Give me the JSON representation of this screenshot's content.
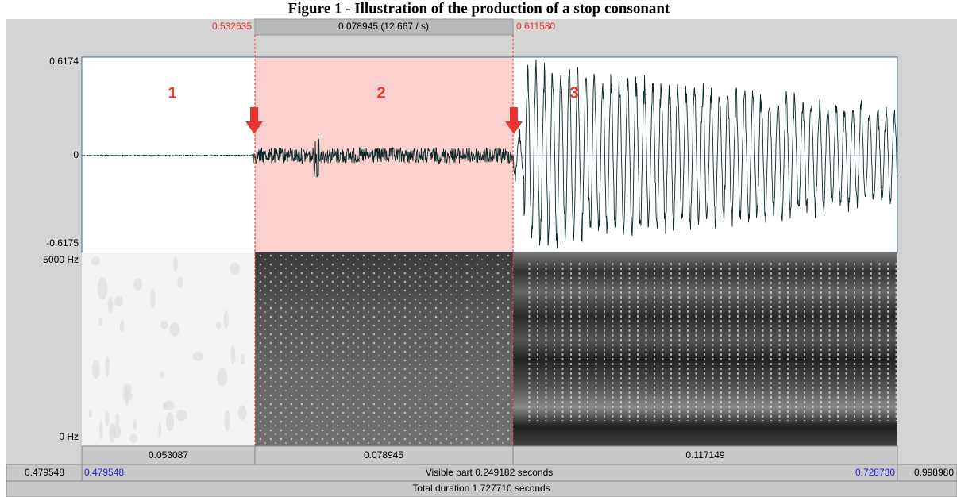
{
  "title": "Figure 1 - Illustration of the production of a stop consonant",
  "selection": {
    "start": "0.532635",
    "duration": "0.078945 (12.667 / s)",
    "end": "0.611580"
  },
  "waveform": {
    "max": "0.6174",
    "zero": "0",
    "min": "-0.6175",
    "regions": [
      "1",
      "2",
      "3"
    ]
  },
  "spectrogram": {
    "top": "5000 Hz",
    "bottom": "0 Hz"
  },
  "segments": [
    "0.053087",
    "0.078945",
    "0.117149"
  ],
  "visible": {
    "window_start": "0.479548",
    "start": "0.479548",
    "label": "Visible part 0.249182 seconds",
    "end": "0.728730",
    "window_end": "0.998980"
  },
  "total": "Total duration 1.727710 seconds"
}
